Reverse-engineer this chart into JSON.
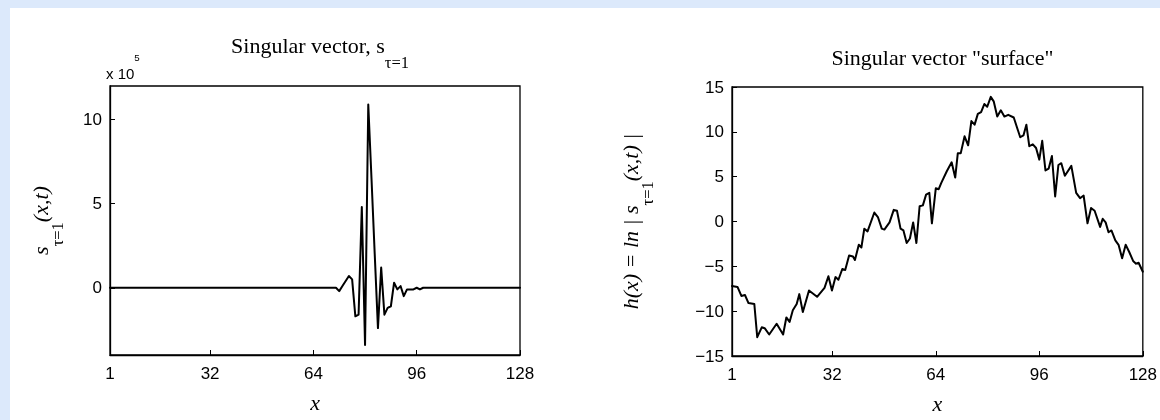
{
  "chart_data": [
    {
      "type": "line",
      "title": "Singular vector, s$_{τ=1}$",
      "xlabel": "x",
      "ylabel": "s$_{τ=1}$(x,t)",
      "annotations": [
        "x 10$^{5}$"
      ],
      "x": [
        1,
        20,
        40,
        60,
        70,
        71,
        72,
        73,
        75,
        76,
        77,
        78,
        79,
        80,
        81,
        82,
        83,
        84,
        85,
        86,
        87,
        88,
        89,
        90,
        91,
        92,
        93,
        94,
        95,
        96,
        97,
        98,
        110,
        128
      ],
      "series": [
        {
          "color": "#000000",
          "values": [
            0,
            0,
            0,
            0,
            0,
            0,
            -0.2,
            0.1,
            0.7,
            0.5,
            -1.7,
            -1.6,
            4.8,
            -3.4,
            10.9,
            6.5,
            2,
            -2.4,
            1.2,
            -1.6,
            -1.2,
            -1.1,
            0.3,
            -0.1,
            0.1,
            -0.5,
            -0.1,
            -0.1,
            -0.1,
            0,
            -0.1,
            0,
            0,
            0
          ]
        }
      ],
      "xlim": [
        1,
        128
      ],
      "xticks": [
        1,
        32,
        64,
        96,
        128
      ],
      "ylim": [
        -4,
        12
      ],
      "yticks": [
        0,
        5,
        10
      ],
      "grid": false,
      "marker": "none",
      "line_style": "solid"
    },
    {
      "type": "line",
      "title": "Singular vector \"surface\"",
      "xlabel": "x",
      "ylabel": "h(x) = ln | s$_{τ=1}$(x,t) |",
      "x": [
        1,
        2.7,
        3.9,
        5,
        6.1,
        7.9,
        8.8,
        10.2,
        11.1,
        12.5,
        14.8,
        16.8,
        17.8,
        18.8,
        19.8,
        21,
        21.8,
        22.9,
        24.8,
        27.3,
        29.6,
        30.8,
        31.9,
        33,
        33.9,
        35.1,
        36,
        37.2,
        38.4,
        39,
        40.2,
        41,
        41.9,
        42.9,
        45,
        46.1,
        47.3,
        48.1,
        49.7,
        51,
        52,
        53.1,
        54,
        55,
        56,
        57,
        58,
        59,
        60,
        61,
        62,
        62.8,
        64,
        64.9,
        65.7,
        67.4,
        68.9,
        70,
        70.8,
        71.7,
        72.9,
        74,
        75,
        76,
        77,
        78,
        79,
        79.9,
        81,
        81.9,
        83,
        84.1,
        85.2,
        86.4,
        88.1,
        90.1,
        91.1,
        92,
        92.9,
        94,
        95,
        96,
        96.9,
        97.9,
        98.9,
        99.9,
        100.9,
        101.9,
        102.8,
        103.9,
        105.9,
        107.4,
        108.6,
        109.7,
        110.9,
        112,
        113.1,
        114.8,
        115.6,
        116.5,
        117.4,
        118.3,
        119.5,
        120.5,
        121.6,
        122.7,
        123.8,
        125,
        125.9,
        126.7,
        128
      ],
      "series": [
        {
          "color": "#000000",
          "values": [
            -7.2,
            -7.3,
            -8.3,
            -8.2,
            -9.1,
            -9.2,
            -12.9,
            -11.8,
            -11.9,
            -12.6,
            -11.4,
            -12.6,
            -10.7,
            -11.2,
            -9.9,
            -9.2,
            -8.1,
            -10.1,
            -7.7,
            -8.4,
            -7.4,
            -6.1,
            -7.7,
            -6.2,
            -6.5,
            -5.3,
            -5.4,
            -3.8,
            -3.9,
            -4.3,
            -2.6,
            -2.9,
            -0.8,
            -1.1,
            1,
            0.5,
            -0.8,
            -0.9,
            -0.1,
            1.3,
            1.2,
            -0.8,
            -1,
            -2.4,
            -1.9,
            -0.1,
            -2.4,
            1.7,
            1.8,
            3,
            3.2,
            -0.2,
            3.7,
            3.6,
            4.3,
            5.6,
            6.6,
            4.9,
            7.6,
            7.6,
            9.5,
            8.5,
            11.2,
            10.8,
            12,
            12.2,
            13.1,
            12.8,
            13.9,
            13.4,
            11.7,
            12.4,
            11.7,
            11.9,
            11.6,
            9.4,
            9.6,
            10.8,
            8.4,
            8.6,
            8.2,
            6.9,
            9,
            5.7,
            5.9,
            7.3,
            2.8,
            6.3,
            6.5,
            5.1,
            6.2,
            3.2,
            2.6,
            2.9,
            -0.2,
            1.5,
            1.2,
            -0.6,
            0.3,
            -0.1,
            -1.2,
            -1,
            -2.1,
            -2.6,
            -4.1,
            -2.6,
            -3.4,
            -4.4,
            -4.7,
            -4.6,
            -5.6
          ]
        }
      ],
      "xlim": [
        1,
        128
      ],
      "xticks": [
        1,
        32,
        64,
        96,
        128
      ],
      "ylim": [
        -15,
        15
      ],
      "yticks": [
        -15,
        -10,
        -5,
        0,
        5,
        10,
        15
      ],
      "grid": false,
      "marker": "none",
      "line_style": "solid"
    }
  ]
}
